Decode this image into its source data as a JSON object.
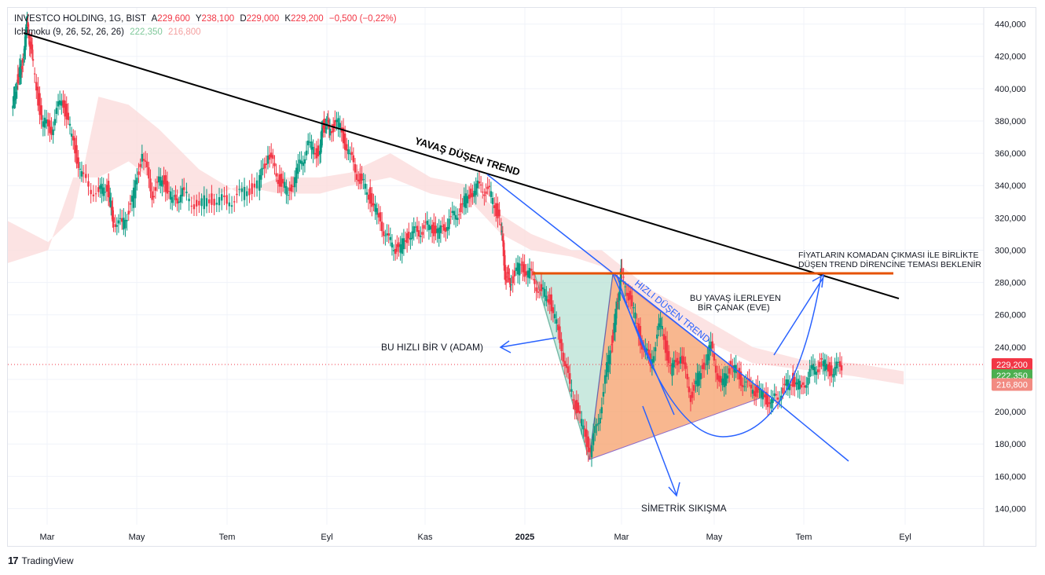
{
  "header": {
    "symbol": "INVESTCO HOLDING, 1G, BIST",
    "open_label": "A",
    "open": "229,600",
    "high_label": "Y",
    "high": "238,100",
    "low_label": "D",
    "low": "229,000",
    "close_label": "K",
    "close": "229,200",
    "change": "−0,500 (−0,22%)",
    "indicator": "Ichimoku (9, 26, 52, 26, 26)",
    "ind_val1": "222,350",
    "ind_val2": "216,800"
  },
  "footer": {
    "brand": "TradingView"
  },
  "colors": {
    "up": "#089981",
    "down": "#f23645",
    "grid": "#f0f3fa",
    "axis_text": "#131722",
    "cloud_green": "#d8eedd",
    "cloud_red": "#fbdcdc",
    "trendline": "#000000",
    "fast_trend": "#2962ff",
    "resistance": "#e65100",
    "v_fill": "#a8dccb",
    "triangle_fill": "#f6a06a"
  },
  "chart_data": {
    "type": "candlestick",
    "y_axis": {
      "min": 130000,
      "max": 450000,
      "ticks": [
        "440,000",
        "420,000",
        "400,000",
        "380,000",
        "360,000",
        "340,000",
        "320,000",
        "300,000",
        "280,000",
        "260,000",
        "240,000",
        "220,000",
        "200,000",
        "180,000",
        "160,000",
        "140,000"
      ]
    },
    "x_axis": {
      "labels": [
        "Mar",
        "May",
        "Tem",
        "Eyl",
        "Kas",
        "2025",
        "Mar",
        "May",
        "Tem",
        "Eyl"
      ]
    },
    "price_labels": [
      {
        "text": "229,200",
        "value": 229200,
        "color": "#f23645"
      },
      {
        "text": "222,350",
        "value": 222350,
        "color": "#4caf50"
      },
      {
        "text": "216,800",
        "value": 216800,
        "color": "#f28b82"
      }
    ],
    "annotations": {
      "slow_trend": "YAVAŞ DÜŞEN TREND",
      "fast_trend": "HIZLI DÜŞEN TREND",
      "v_text": "BU HIZLI BİR V (ADAM)",
      "cup_text_1": "BU YAVAŞ İLERLEYEN",
      "cup_text_2": "BİR  ÇANAK (EVE)",
      "note_1": "FİYATLARIN KOMADAN ÇIKMASI İLE BİRLİKTE",
      "note_2": "DÜŞEN TREND DİRENCİNE TEMASI BEKLENİR",
      "triangle_text": "SİMETRİK SIKIŞMA"
    },
    "price_path": [
      [
        2024.13,
        385000
      ],
      [
        2024.14,
        405000
      ],
      [
        2024.15,
        415000
      ],
      [
        2024.16,
        440000
      ],
      [
        2024.17,
        420000
      ],
      [
        2024.19,
        380000
      ],
      [
        2024.21,
        375000
      ],
      [
        2024.23,
        395000
      ],
      [
        2024.25,
        370000
      ],
      [
        2024.27,
        345000
      ],
      [
        2024.3,
        335000
      ],
      [
        2024.32,
        340000
      ],
      [
        2024.33,
        320000
      ],
      [
        2024.35,
        315000
      ],
      [
        2024.37,
        330000
      ],
      [
        2024.39,
        360000
      ],
      [
        2024.41,
        335000
      ],
      [
        2024.43,
        345000
      ],
      [
        2024.45,
        330000
      ],
      [
        2024.47,
        335000
      ],
      [
        2024.5,
        328000
      ],
      [
        2024.53,
        332000
      ],
      [
        2024.56,
        330000
      ],
      [
        2024.59,
        335000
      ],
      [
        2024.62,
        340000
      ],
      [
        2024.64,
        360000
      ],
      [
        2024.66,
        345000
      ],
      [
        2024.68,
        335000
      ],
      [
        2024.7,
        350000
      ],
      [
        2024.72,
        365000
      ],
      [
        2024.74,
        360000
      ],
      [
        2024.75,
        380000
      ],
      [
        2024.76,
        375000
      ],
      [
        2024.78,
        378000
      ],
      [
        2024.8,
        360000
      ],
      [
        2024.82,
        345000
      ],
      [
        2024.84,
        335000
      ],
      [
        2024.86,
        320000
      ],
      [
        2024.88,
        305000
      ],
      [
        2024.9,
        300000
      ],
      [
        2024.92,
        310000
      ],
      [
        2024.94,
        312000
      ],
      [
        2024.96,
        315000
      ],
      [
        2024.98,
        310000
      ],
      [
        2025.0,
        318000
      ],
      [
        2025.02,
        325000
      ],
      [
        2025.04,
        335000
      ],
      [
        2025.06,
        340000
      ],
      [
        2025.08,
        335000
      ],
      [
        2025.1,
        320000
      ],
      [
        2025.11,
        285000
      ],
      [
        2025.12,
        280000
      ],
      [
        2025.14,
        290000
      ],
      [
        2025.16,
        285000
      ],
      [
        2025.18,
        275000
      ],
      [
        2025.2,
        270000
      ],
      [
        2025.22,
        245000
      ],
      [
        2025.24,
        215000
      ],
      [
        2025.26,
        195000
      ],
      [
        2025.28,
        175000
      ],
      [
        2025.3,
        200000
      ],
      [
        2025.32,
        240000
      ],
      [
        2025.33,
        260000
      ],
      [
        2025.34,
        285000
      ],
      [
        2025.36,
        270000
      ],
      [
        2025.38,
        245000
      ],
      [
        2025.4,
        230000
      ],
      [
        2025.42,
        255000
      ],
      [
        2025.44,
        225000
      ],
      [
        2025.46,
        235000
      ],
      [
        2025.48,
        210000
      ],
      [
        2025.5,
        225000
      ],
      [
        2025.52,
        240000
      ],
      [
        2025.54,
        215000
      ],
      [
        2025.56,
        230000
      ],
      [
        2025.58,
        220000
      ],
      [
        2025.6,
        215000
      ],
      [
        2025.62,
        210000
      ],
      [
        2025.64,
        205000
      ],
      [
        2025.66,
        212000
      ],
      [
        2025.68,
        220000
      ],
      [
        2025.7,
        215000
      ],
      [
        2025.72,
        225000
      ],
      [
        2025.74,
        230000
      ],
      [
        2025.76,
        225000
      ],
      [
        2025.78,
        229200
      ]
    ]
  }
}
